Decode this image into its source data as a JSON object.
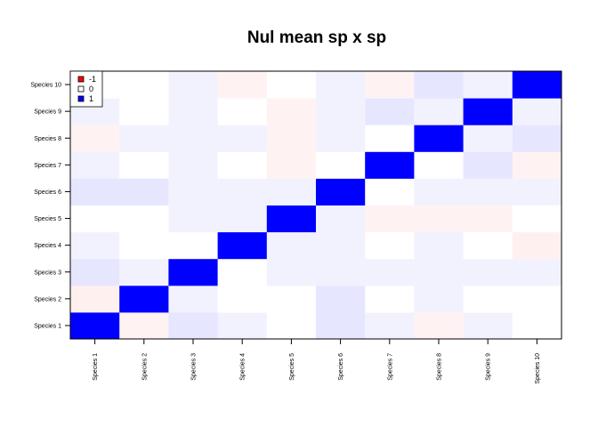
{
  "chart_data": {
    "type": "heatmap",
    "title": "Nul mean sp x sp",
    "xlabel": "",
    "ylabel": "",
    "x_categories": [
      "Species 1",
      "Species 2",
      "Species 3",
      "Species 4",
      "Species 5",
      "Species 6",
      "Species 7",
      "Species 8",
      "Species 9",
      "Species 10"
    ],
    "y_categories": [
      "Species 1",
      "Species 2",
      "Species 3",
      "Species 4",
      "Species 5",
      "Species 6",
      "Species 7",
      "Species 8",
      "Species 9",
      "Species 10"
    ],
    "value_range": [
      -1,
      1
    ],
    "colors": {
      "negative": "#ff0000",
      "zero": "#ffffff",
      "positive": "#0000ff"
    },
    "legend": {
      "position": "top-left",
      "entries": [
        {
          "label": "-1",
          "color": "#ff0000"
        },
        {
          "label": "0",
          "color": "#ffffff"
        },
        {
          "label": "1",
          "color": "#0000ff"
        }
      ]
    },
    "values": [
      [
        1,
        -0.05,
        0.1,
        0.05,
        0,
        0.1,
        0.05,
        -0.05,
        0.05,
        0
      ],
      [
        -0.06,
        1,
        0.05,
        0,
        0,
        0.1,
        0,
        0.05,
        0,
        0
      ],
      [
        0.1,
        0.05,
        1,
        0,
        0.05,
        0.05,
        0.05,
        0.05,
        0.05,
        0.05
      ],
      [
        0.05,
        0,
        0,
        1,
        0.05,
        0.05,
        0,
        0.05,
        0,
        -0.06
      ],
      [
        0,
        0,
        0.05,
        0.05,
        1,
        0.05,
        -0.05,
        -0.05,
        -0.05,
        0
      ],
      [
        0.1,
        0.1,
        0.05,
        0.05,
        0.05,
        1,
        0,
        0.05,
        0.05,
        0.05
      ],
      [
        0.05,
        0,
        0.05,
        0,
        -0.05,
        0,
        1,
        0,
        0.1,
        -0.05
      ],
      [
        -0.05,
        0.05,
        0.05,
        0.05,
        -0.05,
        0.05,
        0,
        1,
        0.05,
        0.1
      ],
      [
        0.05,
        0,
        0.05,
        0,
        -0.05,
        0.05,
        0.1,
        0.05,
        1,
        0.05
      ],
      [
        0,
        0,
        0.05,
        -0.05,
        0,
        0.05,
        -0.05,
        0.1,
        0.05,
        1
      ]
    ]
  }
}
